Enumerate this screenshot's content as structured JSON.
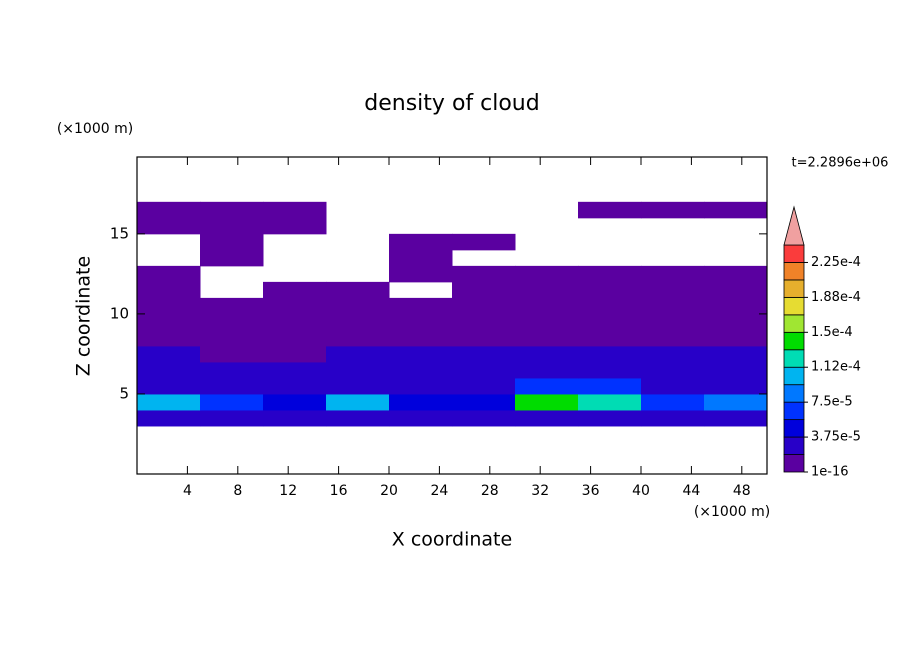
{
  "chart_data": {
    "type": "contour",
    "title": "density of cloud",
    "x_label": "X coordinate",
    "y_label": "Z coordinate",
    "x_unit": "(×1000 m)",
    "y_unit": "(×1000 m)",
    "annotation": "t=2.2896e+06",
    "xlim": [
      0,
      50
    ],
    "ylim": [
      0,
      19.8
    ],
    "xticks": [
      4,
      8,
      12,
      16,
      20,
      24,
      28,
      32,
      36,
      40,
      44,
      48
    ],
    "yticks": [
      5,
      10,
      15
    ],
    "field": {
      "x": [
        2.5,
        7.5,
        12.5,
        17.5,
        22.5,
        27.5,
        32.5,
        37.5,
        42.5,
        47.5
      ],
      "z": [
        3.5,
        4.5,
        5.5,
        6.5,
        7.5,
        8.5,
        9.5,
        10.5,
        11.5,
        12.5,
        13.5,
        14.5,
        15.5,
        16.5
      ],
      "values": [
        [
          3e-05,
          3e-05,
          3e-05,
          3e-05,
          3e-05,
          3e-05,
          3e-05,
          3e-05,
          3e-05,
          3e-05
        ],
        [
          0.00011,
          6e-05,
          4e-05,
          0.0001,
          5e-05,
          4e-05,
          0.00014,
          0.00012,
          6e-05,
          8e-05
        ],
        [
          3e-05,
          3e-05,
          2.5e-05,
          3e-05,
          2.5e-05,
          2.5e-05,
          6e-05,
          6e-05,
          3e-05,
          3e-05
        ],
        [
          2e-05,
          2e-05,
          2e-05,
          2e-05,
          2e-05,
          2e-05,
          2e-05,
          2e-05,
          2e-05,
          2e-05
        ],
        [
          2e-05,
          1e-05,
          1e-05,
          2e-05,
          2e-05,
          2e-05,
          2e-05,
          2e-05,
          2e-05,
          2e-05
        ],
        [
          1e-05,
          1e-05,
          1e-05,
          1e-05,
          1e-05,
          1e-05,
          1e-05,
          1e-05,
          1e-05,
          1e-05
        ],
        [
          1e-05,
          1e-05,
          1e-05,
          1e-05,
          1e-05,
          1e-05,
          1e-05,
          1e-05,
          1e-05,
          1e-05
        ],
        [
          1e-05,
          1e-05,
          1e-05,
          1e-05,
          1e-05,
          1e-05,
          1e-05,
          1e-05,
          1e-05,
          1e-05
        ],
        [
          1e-05,
          null,
          1e-05,
          1e-05,
          null,
          1e-05,
          1e-05,
          1e-05,
          1e-05,
          1e-05
        ],
        [
          1e-05,
          null,
          null,
          null,
          1e-05,
          1e-05,
          1e-05,
          1e-05,
          1e-05,
          1e-05
        ],
        [
          null,
          1e-05,
          null,
          null,
          1e-05,
          null,
          null,
          null,
          null,
          null
        ],
        [
          null,
          1e-05,
          null,
          null,
          1e-05,
          1e-05,
          null,
          null,
          null,
          null
        ],
        [
          1e-05,
          1e-05,
          1e-05,
          null,
          null,
          null,
          null,
          null,
          null,
          null
        ],
        [
          1e-05,
          1e-05,
          1e-05,
          null,
          null,
          null,
          null,
          1e-05,
          1e-05,
          1e-05
        ]
      ]
    },
    "colorbar": {
      "levels": [
        1e-16,
        1.875e-05,
        3.75e-05,
        5.625e-05,
        7.5e-05,
        9.375e-05,
        0.0001125,
        0.00013125,
        0.00015,
        0.00016875,
        0.0001875,
        0.00020625,
        0.000225,
        0.00024375
      ],
      "colors": [
        "#5a00a0",
        "#2800c8",
        "#0000dc",
        "#0032ff",
        "#0078ff",
        "#00b4f0",
        "#00dcb4",
        "#00dc00",
        "#a0e632",
        "#e6dc32",
        "#e6af2d",
        "#f08228",
        "#fa3c3c",
        "#f0a0a0"
      ],
      "ticks": [
        {
          "value": 1e-16,
          "label": "1e-16"
        },
        {
          "value": 3.75e-05,
          "label": "3.75e-5"
        },
        {
          "value": 7.5e-05,
          "label": "7.5e-5"
        },
        {
          "value": 0.0001125,
          "label": "1.12e-4"
        },
        {
          "value": 0.00015,
          "label": "1.5e-4"
        },
        {
          "value": 0.0001875,
          "label": "1.88e-4"
        },
        {
          "value": 0.000225,
          "label": "2.25e-4"
        }
      ]
    }
  }
}
